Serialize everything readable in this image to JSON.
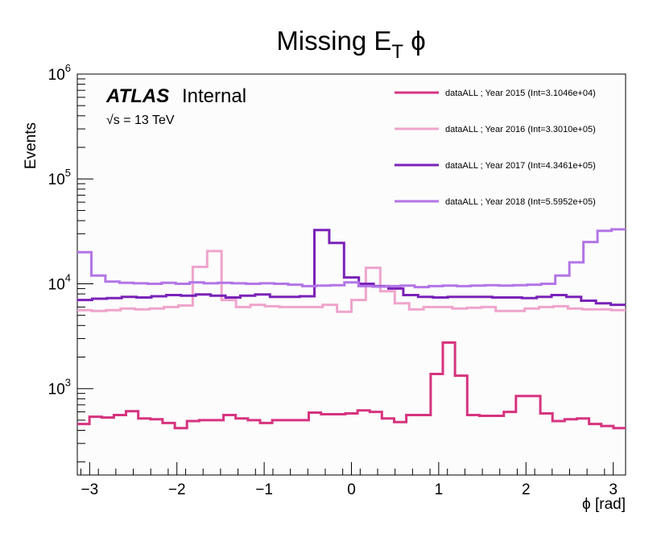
{
  "chart_data": {
    "type": "line",
    "title": "Missing E",
    "title_sub": "T",
    "title_tail": " ϕ",
    "xlabel": "ϕ [rad]",
    "ylabel": "Events",
    "xlim": [
      -3.1416,
      3.1416
    ],
    "ylim": [
      150,
      1000000
    ],
    "yscale": "log",
    "xticks": [
      -3,
      -2,
      -1,
      0,
      1,
      2,
      3
    ],
    "xtick_labels": [
      "−3",
      "−2",
      "−1",
      "0",
      "1",
      "2",
      "3"
    ],
    "yticks": [
      1000,
      10000,
      100000,
      1000000
    ],
    "ytick_bases": [
      "10",
      "10",
      "10",
      "10"
    ],
    "ytick_exps": [
      "3",
      "4",
      "5",
      "6"
    ],
    "atlas_label": "ATLAS",
    "atlas_sub": "Internal",
    "energy_sqrt": "√s",
    "energy_label": " = 13 TeV",
    "legend_position": "top-right",
    "bins": 40,
    "series": [
      {
        "name": "dataALL ; Year 2015 (Int=3.1046e+04)",
        "color": "#d6337f",
        "values": [
          460,
          540,
          530,
          560,
          610,
          520,
          510,
          470,
          420,
          490,
          500,
          500,
          560,
          520,
          500,
          470,
          500,
          500,
          500,
          590,
          570,
          570,
          580,
          620,
          600,
          520,
          480,
          560,
          560,
          1380,
          2750,
          1330,
          560,
          550,
          550,
          600,
          850,
          850,
          580,
          490,
          510,
          520,
          460,
          440,
          420
        ]
      },
      {
        "name": "dataALL ; Year 2016 (Int=3.3010e+05)",
        "color": "#eea4cc",
        "values": [
          5600,
          5500,
          5600,
          5800,
          5700,
          5800,
          6000,
          6200,
          14500,
          20500,
          7000,
          6000,
          6300,
          6100,
          6000,
          6000,
          6000,
          6300,
          5400,
          7000,
          14200,
          8500,
          6500,
          5700,
          6000,
          6000,
          5800,
          5900,
          6000,
          5500,
          5500,
          5800,
          6000,
          6100,
          5800,
          5700,
          5700,
          5600
        ]
      },
      {
        "name": "dataALL ; Year 2017 (Int=4.3461e+05)",
        "color": "#7a22b8",
        "values": [
          7000,
          7200,
          7300,
          7500,
          7400,
          7600,
          7800,
          7700,
          7900,
          7700,
          7400,
          7700,
          7900,
          7500,
          7500,
          7600,
          32500,
          24500,
          11500,
          10000,
          9500,
          9000,
          7800,
          7500,
          7400,
          7500,
          7500,
          7500,
          7400,
          7400,
          7300,
          7500,
          7800,
          7500,
          6900,
          6500,
          6300
        ]
      },
      {
        "name": "dataALL ; Year 2018 (Int=5.5952e+05)",
        "color": "#b275e6",
        "values": [
          20000,
          12000,
          10500,
          10200,
          10100,
          10000,
          10200,
          10000,
          10300,
          10100,
          10200,
          10100,
          10000,
          10100,
          10000,
          9800,
          9500,
          9600,
          9700,
          10300,
          9500,
          9400,
          9500,
          9600,
          9300,
          9500,
          9600,
          9500,
          9600,
          9700,
          9600,
          9700,
          9800,
          10000,
          12000,
          16000,
          25000,
          32000,
          33000
        ]
      }
    ]
  }
}
